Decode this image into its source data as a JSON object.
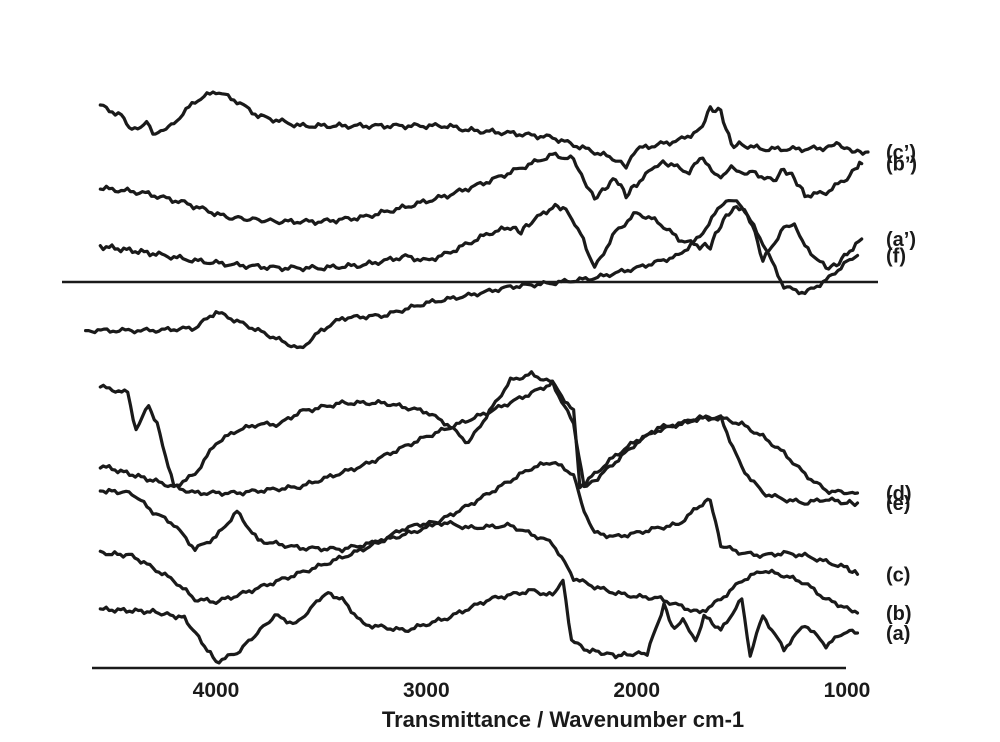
{
  "chart_data": {
    "type": "line",
    "title": "",
    "xlabel": "Transmittance / Wavenumber  cm-1",
    "ylabel": "",
    "x_ticks": [
      4000,
      3000,
      2000,
      1000
    ],
    "xlim": [
      4620,
      940
    ],
    "x_reversed": true,
    "y_axis_shown": false,
    "grid": false,
    "legend": "labels at right end of each trace",
    "series": [
      {
        "name": "(a)",
        "panel": "bottom",
        "x": [
          4550,
          4300,
          4150,
          4000,
          3900,
          3720,
          3620,
          3480,
          3400,
          3300,
          3100,
          2900,
          2700,
          2500,
          2400,
          2350,
          2310,
          2250,
          2100,
          1950,
          1870,
          1820,
          1780,
          1720,
          1680,
          1600,
          1500,
          1460,
          1400,
          1300,
          1200,
          1100,
          1000,
          950
        ],
        "y": [
          0.47,
          0.45,
          0.4,
          0.05,
          0.12,
          0.42,
          0.35,
          0.6,
          0.55,
          0.35,
          0.3,
          0.4,
          0.55,
          0.62,
          0.58,
          0.7,
          0.22,
          0.15,
          0.1,
          0.12,
          0.5,
          0.3,
          0.4,
          0.2,
          0.42,
          0.3,
          0.55,
          0.1,
          0.42,
          0.15,
          0.35,
          0.18,
          0.3,
          0.28
        ]
      },
      {
        "name": "(b)",
        "panel": "bottom",
        "x": [
          4550,
          4400,
          4300,
          4200,
          4100,
          4000,
          3900,
          3700,
          3500,
          3300,
          3100,
          3000,
          2900,
          2800,
          2600,
          2400,
          2300,
          2200,
          2100,
          2000,
          1900,
          1800,
          1700,
          1600,
          1500,
          1400,
          1300,
          1200,
          1100,
          1000,
          950
        ],
        "y": [
          0.92,
          0.9,
          0.8,
          0.7,
          0.55,
          0.53,
          0.58,
          0.7,
          0.82,
          0.95,
          1.12,
          1.16,
          1.16,
          1.12,
          1.14,
          1.0,
          0.72,
          0.65,
          0.6,
          0.57,
          0.56,
          0.5,
          0.44,
          0.55,
          0.7,
          0.78,
          0.74,
          0.68,
          0.55,
          0.48,
          0.44
        ]
      },
      {
        "name": "(c)",
        "panel": "bottom",
        "x": [
          4550,
          4400,
          4300,
          4200,
          4100,
          4000,
          3900,
          3800,
          3600,
          3400,
          3200,
          3000,
          2800,
          2600,
          2500,
          2400,
          2300,
          2250,
          2200,
          2100,
          2000,
          1900,
          1800,
          1700,
          1650,
          1600,
          1500,
          1400,
          1300,
          1200,
          1100,
          1000,
          950
        ],
        "y": [
          1.42,
          1.4,
          1.25,
          1.15,
          0.95,
          1.05,
          1.25,
          1.02,
          0.96,
          0.95,
          1.02,
          1.12,
          1.3,
          1.5,
          1.6,
          1.65,
          1.55,
          1.25,
          1.08,
          1.05,
          1.08,
          1.12,
          1.15,
          1.3,
          1.35,
          0.98,
          0.92,
          0.9,
          0.92,
          0.9,
          0.85,
          0.8,
          0.75
        ]
      },
      {
        "name": "(d)",
        "panel": "bottom",
        "x": [
          4550,
          4300,
          4100,
          3900,
          3600,
          3300,
          3000,
          2700,
          2500,
          2400,
          2300,
          2270,
          2200,
          2100,
          2000,
          1900,
          1800,
          1700,
          1600,
          1500,
          1400,
          1300,
          1200,
          1100,
          1000,
          950
        ],
        "y": [
          1.62,
          1.5,
          1.4,
          1.4,
          1.45,
          1.62,
          1.85,
          2.05,
          2.2,
          2.28,
          2.05,
          1.45,
          1.55,
          1.7,
          1.82,
          1.9,
          1.95,
          2.0,
          2.0,
          1.95,
          1.85,
          1.72,
          1.55,
          1.42,
          1.4,
          1.4
        ]
      },
      {
        "name": "(e)",
        "panel": "bottom",
        "x": [
          4550,
          4420,
          4380,
          4320,
          4280,
          4200,
          4100,
          4000,
          3900,
          3800,
          3700,
          3600,
          3400,
          3200,
          3000,
          2900,
          2800,
          2700,
          2600,
          2500,
          2400,
          2300,
          2250,
          2200,
          2100,
          2000,
          1900,
          1800,
          1700,
          1600,
          1500,
          1400,
          1300,
          1200,
          1100,
          1000,
          950
        ],
        "y": [
          2.25,
          2.2,
          1.9,
          2.1,
          1.95,
          1.45,
          1.55,
          1.8,
          1.9,
          1.95,
          1.95,
          2.05,
          2.12,
          2.12,
          2.05,
          1.95,
          1.8,
          2.05,
          2.3,
          2.35,
          2.28,
          1.95,
          1.45,
          1.5,
          1.65,
          1.8,
          1.92,
          1.95,
          2.0,
          2.0,
          1.6,
          1.4,
          1.35,
          1.32,
          1.35,
          1.32,
          1.32
        ]
      },
      {
        "name": "(f)",
        "panel": "bottom",
        "x": [
          4620,
          4300,
          4100,
          4000,
          3800,
          3600,
          3500,
          3400,
          3200,
          3000,
          2800,
          2600,
          2400,
          2200,
          2000,
          1800,
          1700,
          1600,
          1550,
          1500,
          1400,
          1300,
          1200,
          1100,
          1000,
          950
        ],
        "y": [
          2.7,
          2.7,
          2.72,
          2.85,
          2.7,
          2.55,
          2.7,
          2.8,
          2.82,
          2.92,
          2.98,
          3.05,
          3.08,
          3.12,
          3.2,
          3.3,
          3.45,
          3.7,
          3.75,
          3.7,
          3.4,
          3.05,
          3.0,
          3.1,
          3.25,
          3.3
        ]
      },
      {
        "name": "(a’)",
        "panel": "top",
        "x": [
          4550,
          4300,
          4100,
          3900,
          3700,
          3500,
          3300,
          3100,
          3000,
          2900,
          2700,
          2600,
          2550,
          2500,
          2400,
          2350,
          2280,
          2200,
          2100,
          2000,
          1900,
          1800,
          1700,
          1650,
          1600,
          1550,
          1500,
          1450,
          1400,
          1300,
          1250,
          1200,
          1100,
          1050,
          1000,
          930
        ],
        "y": [
          0.15,
          0.1,
          0.05,
          0.02,
          0.0,
          0.0,
          0.02,
          0.08,
          0.05,
          0.1,
          0.24,
          0.28,
          0.25,
          0.32,
          0.42,
          0.42,
          0.28,
          0.0,
          0.25,
          0.38,
          0.32,
          0.2,
          0.15,
          0.15,
          0.3,
          0.4,
          0.42,
          0.3,
          0.05,
          0.28,
          0.3,
          0.15,
          0.0,
          0.02,
          0.1,
          0.2
        ]
      },
      {
        "name": "(b’)",
        "panel": "top",
        "x": [
          4550,
          4350,
          4150,
          3950,
          3700,
          3500,
          3300,
          3100,
          2900,
          2700,
          2500,
          2400,
          2300,
          2250,
          2200,
          2150,
          2100,
          2050,
          2000,
          1900,
          1850,
          1750,
          1700,
          1600,
          1550,
          1500,
          1450,
          1350,
          1300,
          1250,
          1200,
          1100,
          1000,
          950,
          930
        ],
        "y": [
          0.55,
          0.52,
          0.45,
          0.35,
          0.32,
          0.32,
          0.35,
          0.42,
          0.5,
          0.6,
          0.72,
          0.78,
          0.75,
          0.6,
          0.48,
          0.55,
          0.62,
          0.5,
          0.58,
          0.72,
          0.72,
          0.66,
          0.76,
          0.62,
          0.7,
          0.65,
          0.66,
          0.6,
          0.68,
          0.62,
          0.5,
          0.52,
          0.62,
          0.7,
          0.72
        ]
      },
      {
        "name": "(c’)",
        "panel": "top",
        "x": [
          4550,
          4450,
          4400,
          4330,
          4300,
          4250,
          4200,
          4100,
          4000,
          3900,
          3800,
          3600,
          3400,
          3200,
          2900,
          2800,
          2600,
          2400,
          2300,
          2200,
          2100,
          2050,
          2000,
          1900,
          1800,
          1700,
          1650,
          1600,
          1550,
          1500,
          1400,
          1300,
          1200,
          1100,
          1050,
          1000,
          950,
          900
        ],
        "y": [
          1.12,
          1.05,
          0.95,
          1.0,
          0.92,
          0.95,
          1.0,
          1.15,
          1.22,
          1.15,
          1.05,
          0.98,
          0.98,
          0.98,
          0.98,
          0.95,
          0.93,
          0.9,
          0.85,
          0.8,
          0.75,
          0.7,
          0.82,
          0.85,
          0.88,
          0.95,
          1.1,
          1.08,
          0.85,
          0.85,
          0.82,
          0.82,
          0.82,
          0.83,
          0.86,
          0.82,
          0.8,
          0.8
        ]
      }
    ]
  }
}
